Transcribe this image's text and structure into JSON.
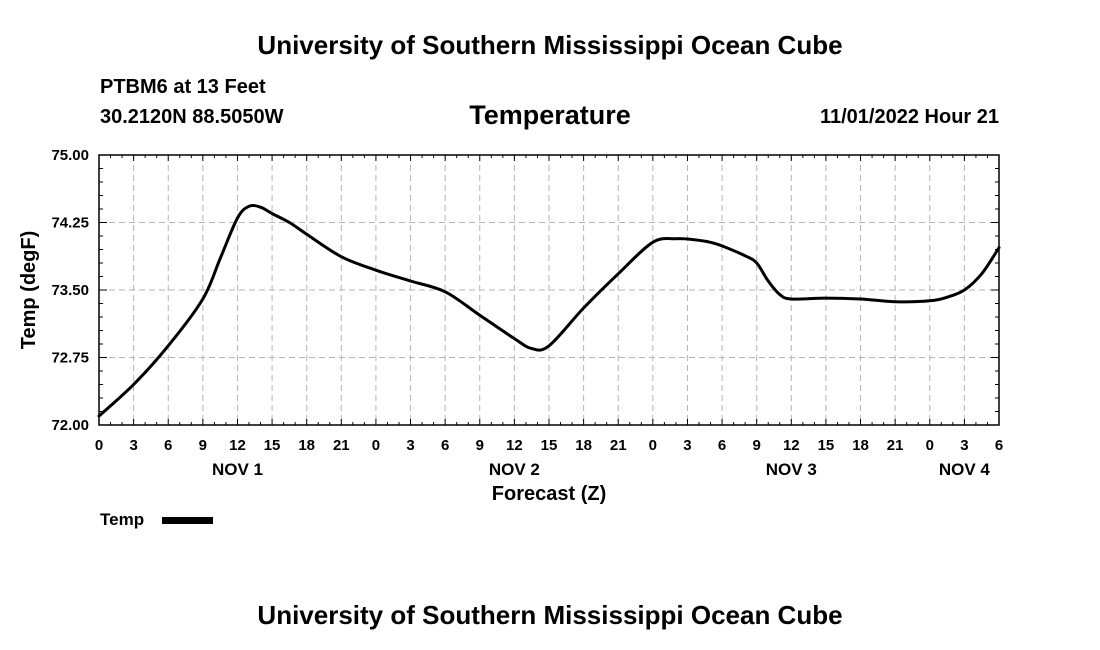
{
  "header": {
    "title_top": "University of Southern Mississippi Ocean Cube",
    "station": "PTBM6 at 13 Feet",
    "coords": "30.2120N  88.5050W",
    "run_time": "11/01/2022 Hour 21"
  },
  "footer": {
    "title_bottom": "University of Southern Mississippi Ocean Cube"
  },
  "chart_data": {
    "type": "line",
    "title": "Temperature",
    "xlabel": "Forecast (Z)",
    "ylabel": "Temp (degF)",
    "xlim": [
      0,
      78
    ],
    "ylim": [
      72.0,
      75.0
    ],
    "yticks": [
      72.0,
      72.75,
      73.5,
      74.25,
      75.0
    ],
    "ytick_labels": [
      "72.00",
      "72.75",
      "73.50",
      "74.25",
      "75.00"
    ],
    "xtick_hours": [
      0,
      3,
      6,
      9,
      12,
      15,
      18,
      21,
      24,
      27,
      30,
      33,
      36,
      39,
      42,
      45,
      48,
      51,
      54,
      57,
      60,
      63,
      66,
      69,
      72,
      75,
      78
    ],
    "xtick_labels": [
      "0",
      "3",
      "6",
      "9",
      "12",
      "15",
      "18",
      "21",
      "0",
      "3",
      "6",
      "9",
      "12",
      "15",
      "18",
      "21",
      "0",
      "3",
      "6",
      "9",
      "12",
      "15",
      "18",
      "21",
      "0",
      "3",
      "6"
    ],
    "date_labels": [
      {
        "hour": 12,
        "text": "NOV 1"
      },
      {
        "hour": 36,
        "text": "NOV 2"
      },
      {
        "hour": 60,
        "text": "NOV 3"
      },
      {
        "hour": 75,
        "text": "NOV 4"
      }
    ],
    "grid": true,
    "legend": "bottom-left",
    "series": [
      {
        "name": "Temp",
        "color": "#000000",
        "x": [
          0,
          3,
          6,
          9,
          10.5,
          12,
          13,
          14,
          15,
          16.5,
          18,
          21,
          24,
          27,
          30,
          33,
          36,
          37.5,
          39,
          42,
          45,
          48,
          50,
          51.5,
          53,
          54,
          56,
          57,
          58,
          59,
          60,
          63,
          66,
          69,
          72,
          73.5,
          75,
          76.5,
          78
        ],
        "values": [
          72.1,
          72.45,
          72.88,
          73.4,
          73.85,
          74.3,
          74.43,
          74.42,
          74.35,
          74.25,
          74.12,
          73.87,
          73.72,
          73.6,
          73.48,
          73.22,
          72.96,
          72.85,
          72.88,
          73.3,
          73.68,
          74.03,
          74.07,
          74.06,
          74.03,
          73.99,
          73.88,
          73.8,
          73.6,
          73.45,
          73.4,
          73.41,
          73.4,
          73.37,
          73.38,
          73.42,
          73.5,
          73.68,
          73.97
        ]
      }
    ]
  }
}
